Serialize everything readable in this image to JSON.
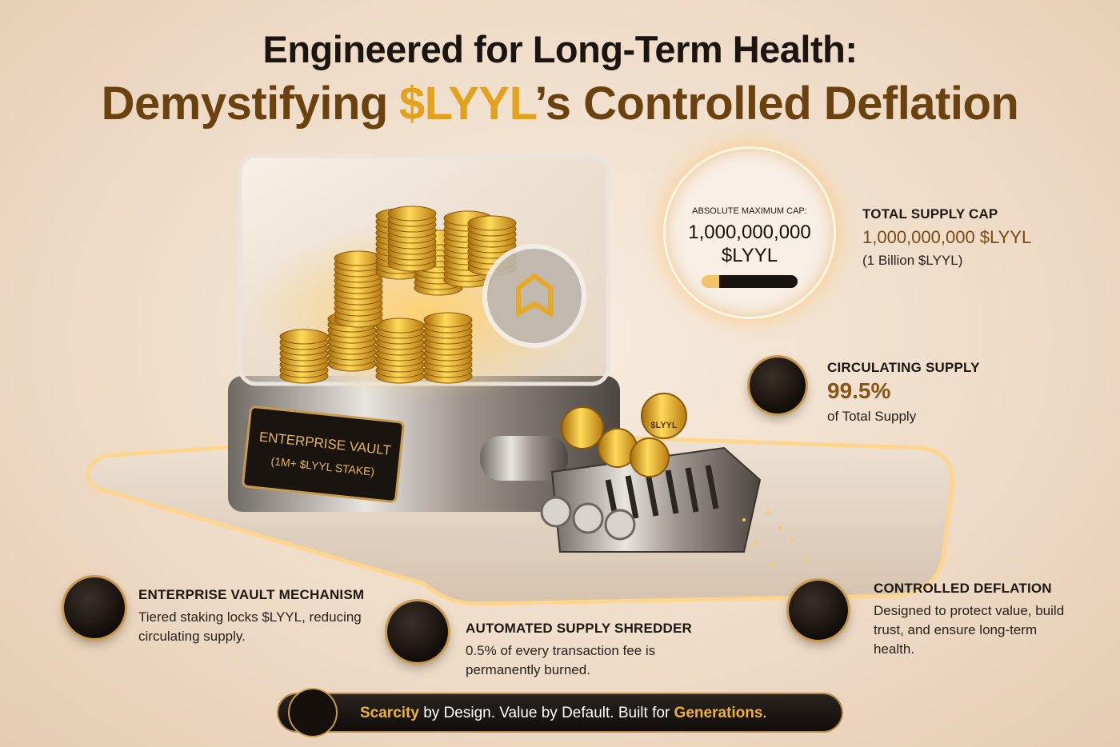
{
  "header": {
    "title_line1": "Engineered for Long-Term Health:",
    "title_line2": {
      "prefix": "Demystifying",
      "token": "$LYYL",
      "suffix": "’s Controlled Deflation"
    }
  },
  "vault": {
    "plaque_title": "ENTERPRISE VAULT",
    "plaque_subtitle": "(1M+ $LYYL STAKE)",
    "coin_label": "$LYYL"
  },
  "gauge": {
    "label": "ABSOLUTE MAXIMUM CAP:",
    "amount": "1,000,000,000",
    "unit": "$LYYL"
  },
  "stats": [
    {
      "heading": "TOTAL SUPPLY CAP",
      "value": "1,000,000,000 $LYYL",
      "note": "(1 Billion $LYYL)"
    },
    {
      "heading": "CIRCULATING SUPPLY",
      "value": "99.5%",
      "note": "of Total Supply"
    }
  ],
  "features": [
    {
      "heading": "ENTERPRISE VAULT MECHANISM",
      "text": "Tiered staking locks $LYYL, reducing circulating supply."
    },
    {
      "heading": "AUTOMATED SUPPLY SHREDDER",
      "text": "0.5% of every transaction fee is permanently burned."
    },
    {
      "heading": "CONTROLLED DEFLATION",
      "text": "Designed to protect value, build trust, and ensure long-term health."
    }
  ],
  "footer": {
    "highlight1": "Scarcity",
    "middle": " by Design. Value by Default. Built for ",
    "highlight2": "Generations",
    "end": "."
  }
}
